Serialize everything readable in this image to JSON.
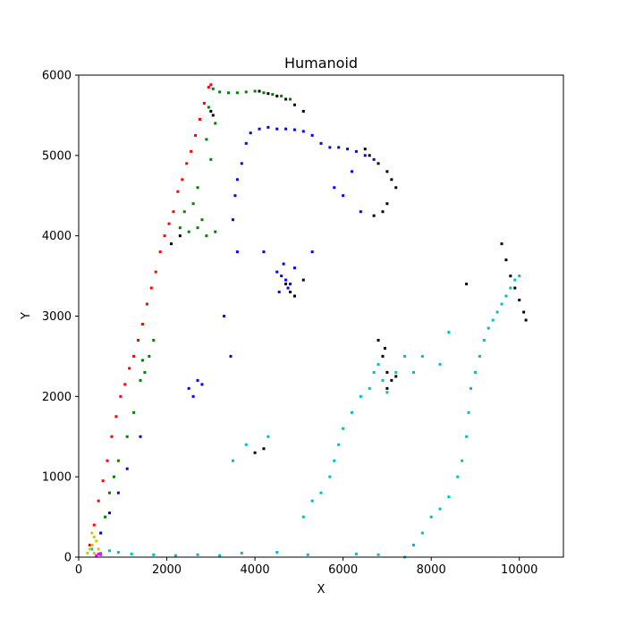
{
  "chart_data": {
    "type": "scatter",
    "title": "Humanoid",
    "xlabel": "X",
    "ylabel": "Y",
    "xlim": [
      0,
      11000
    ],
    "ylim": [
      0,
      6000
    ],
    "x_ticks": [
      0,
      2000,
      4000,
      6000,
      8000,
      10000
    ],
    "y_ticks": [
      0,
      1000,
      2000,
      3000,
      4000,
      5000,
      6000
    ],
    "x_tick_labels": [
      "0",
      "2000",
      "4000",
      "6000",
      "8000",
      "10000"
    ],
    "y_tick_labels": [
      "0",
      "1000",
      "2000",
      "3000",
      "4000",
      "5000",
      "6000"
    ],
    "grid": false,
    "series": [
      {
        "color": "#ff0000",
        "points": [
          [
            250,
            150
          ],
          [
            350,
            400
          ],
          [
            450,
            700
          ],
          [
            550,
            950
          ],
          [
            650,
            1200
          ],
          [
            750,
            1500
          ],
          [
            850,
            1750
          ],
          [
            950,
            2000
          ],
          [
            1050,
            2150
          ],
          [
            1150,
            2350
          ],
          [
            1250,
            2500
          ],
          [
            1350,
            2700
          ],
          [
            1450,
            2900
          ],
          [
            1550,
            3150
          ],
          [
            1650,
            3350
          ],
          [
            1750,
            3550
          ],
          [
            1850,
            3800
          ],
          [
            1950,
            4000
          ],
          [
            2050,
            4150
          ],
          [
            2150,
            4300
          ],
          [
            2250,
            4550
          ],
          [
            2350,
            4700
          ],
          [
            2450,
            4900
          ],
          [
            2550,
            5050
          ],
          [
            2650,
            5250
          ],
          [
            2750,
            5450
          ],
          [
            2850,
            5650
          ],
          [
            2950,
            5850
          ],
          [
            3000,
            5880
          ]
        ]
      },
      {
        "color": "#008000",
        "points": [
          [
            3050,
            5830
          ],
          [
            3200,
            5790
          ],
          [
            3400,
            5780
          ],
          [
            3600,
            5780
          ],
          [
            3800,
            5790
          ],
          [
            4000,
            5800
          ],
          [
            4200,
            5780
          ],
          [
            4400,
            5760
          ],
          [
            4600,
            5740
          ],
          [
            4800,
            5700
          ],
          [
            2950,
            5600
          ],
          [
            3100,
            5400
          ],
          [
            2900,
            5200
          ],
          [
            2300,
            4100
          ],
          [
            2500,
            4050
          ],
          [
            2700,
            4100
          ],
          [
            2900,
            4000
          ],
          [
            3100,
            4050
          ],
          [
            2400,
            4300
          ],
          [
            2800,
            4200
          ],
          [
            1450,
            2450
          ],
          [
            1500,
            2300
          ],
          [
            1400,
            2200
          ],
          [
            1600,
            2500
          ],
          [
            1700,
            2700
          ],
          [
            1250,
            1800
          ],
          [
            1100,
            1500
          ],
          [
            900,
            1200
          ],
          [
            800,
            1000
          ],
          [
            700,
            800
          ],
          [
            600,
            500
          ],
          [
            500,
            300
          ],
          [
            2600,
            4400
          ],
          [
            2700,
            4600
          ],
          [
            3000,
            4950
          ]
        ]
      },
      {
        "color": "#0000ff",
        "points": [
          [
            3900,
            5280
          ],
          [
            4100,
            5330
          ],
          [
            4300,
            5350
          ],
          [
            4500,
            5330
          ],
          [
            4700,
            5330
          ],
          [
            4900,
            5320
          ],
          [
            5100,
            5300
          ],
          [
            5300,
            5250
          ],
          [
            5500,
            5150
          ],
          [
            5700,
            5100
          ],
          [
            5900,
            5100
          ],
          [
            6100,
            5080
          ],
          [
            6300,
            5050
          ],
          [
            6500,
            5000
          ],
          [
            6700,
            4950
          ],
          [
            3800,
            5150
          ],
          [
            3700,
            4900
          ],
          [
            3600,
            4700
          ],
          [
            3550,
            4500
          ],
          [
            3500,
            4200
          ],
          [
            3600,
            3800
          ],
          [
            4600,
            3500
          ],
          [
            4700,
            3450
          ],
          [
            4800,
            3400
          ],
          [
            4500,
            3550
          ],
          [
            4650,
            3650
          ],
          [
            4750,
            3350
          ],
          [
            4550,
            3300
          ],
          [
            4900,
            3600
          ],
          [
            5300,
            3800
          ],
          [
            2500,
            2100
          ],
          [
            2600,
            2000
          ],
          [
            2700,
            2200
          ],
          [
            2800,
            2150
          ],
          [
            1400,
            1500
          ],
          [
            1100,
            1100
          ],
          [
            900,
            800
          ],
          [
            700,
            550
          ],
          [
            500,
            300
          ],
          [
            300,
            150
          ],
          [
            3450,
            2500
          ],
          [
            4200,
            3800
          ],
          [
            5800,
            4600
          ],
          [
            6000,
            4500
          ],
          [
            6400,
            4300
          ],
          [
            6200,
            4800
          ],
          [
            3300,
            3000
          ]
        ]
      },
      {
        "color": "#000000",
        "points": [
          [
            4100,
            5800
          ],
          [
            4300,
            5770
          ],
          [
            4500,
            5740
          ],
          [
            4700,
            5700
          ],
          [
            4900,
            5630
          ],
          [
            5100,
            5550
          ],
          [
            6500,
            5080
          ],
          [
            6600,
            5000
          ],
          [
            6800,
            4900
          ],
          [
            7000,
            4800
          ],
          [
            7100,
            4700
          ],
          [
            7200,
            4600
          ],
          [
            6900,
            4300
          ],
          [
            7000,
            4400
          ],
          [
            6700,
            4250
          ],
          [
            4700,
            3400
          ],
          [
            4800,
            3300
          ],
          [
            4900,
            3250
          ],
          [
            5100,
            3450
          ],
          [
            6800,
            2700
          ],
          [
            6900,
            2500
          ],
          [
            7000,
            2300
          ],
          [
            7100,
            2200
          ],
          [
            7200,
            2250
          ],
          [
            7000,
            2100
          ],
          [
            6950,
            2600
          ],
          [
            9600,
            3900
          ],
          [
            9700,
            3700
          ],
          [
            9800,
            3500
          ],
          [
            9900,
            3350
          ],
          [
            10000,
            3200
          ],
          [
            10100,
            3050
          ],
          [
            10150,
            2950
          ],
          [
            4000,
            1300
          ],
          [
            4200,
            1350
          ],
          [
            2300,
            4000
          ],
          [
            2100,
            3900
          ],
          [
            3000,
            5550
          ],
          [
            3050,
            5500
          ],
          [
            8800,
            3400
          ]
        ]
      },
      {
        "color": "#00bfbf",
        "points": [
          [
            7400,
            0
          ],
          [
            7600,
            150
          ],
          [
            7800,
            300
          ],
          [
            8000,
            500
          ],
          [
            8200,
            600
          ],
          [
            8400,
            750
          ],
          [
            8600,
            1000
          ],
          [
            8700,
            1200
          ],
          [
            8800,
            1500
          ],
          [
            8850,
            1800
          ],
          [
            8900,
            2100
          ],
          [
            9000,
            2300
          ],
          [
            9100,
            2500
          ],
          [
            9200,
            2700
          ],
          [
            9300,
            2850
          ],
          [
            9400,
            2950
          ],
          [
            9500,
            3050
          ],
          [
            9600,
            3150
          ],
          [
            9700,
            3250
          ],
          [
            9800,
            3350
          ],
          [
            9900,
            3450
          ],
          [
            10000,
            3500
          ],
          [
            6700,
            2300
          ],
          [
            6800,
            2400
          ],
          [
            6900,
            2200
          ],
          [
            7000,
            2050
          ],
          [
            7200,
            2300
          ],
          [
            7400,
            2500
          ],
          [
            6600,
            2100
          ],
          [
            6400,
            2000
          ],
          [
            6200,
            1800
          ],
          [
            6000,
            1600
          ],
          [
            5900,
            1400
          ],
          [
            5800,
            1200
          ],
          [
            5700,
            1000
          ],
          [
            5500,
            800
          ],
          [
            5300,
            700
          ],
          [
            5100,
            500
          ],
          [
            3500,
            1200
          ],
          [
            3800,
            1400
          ],
          [
            4300,
            1500
          ],
          [
            300,
            100
          ],
          [
            500,
            50
          ],
          [
            700,
            80
          ],
          [
            900,
            60
          ],
          [
            1200,
            40
          ],
          [
            1700,
            30
          ],
          [
            2200,
            20
          ],
          [
            2700,
            30
          ],
          [
            3200,
            20
          ],
          [
            3700,
            50
          ],
          [
            4500,
            60
          ],
          [
            5200,
            30
          ],
          [
            6300,
            40
          ],
          [
            6800,
            30
          ],
          [
            7600,
            2300
          ],
          [
            8200,
            2400
          ],
          [
            8400,
            2800
          ],
          [
            7800,
            2500
          ]
        ]
      },
      {
        "color": "#cccc00",
        "points": [
          [
            200,
            50
          ],
          [
            250,
            100
          ],
          [
            300,
            150
          ],
          [
            350,
            250
          ],
          [
            400,
            200
          ],
          [
            450,
            100
          ],
          [
            300,
            300
          ],
          [
            350,
            50
          ]
        ]
      },
      {
        "color": "#ff00ff",
        "points": [
          [
            400,
            20
          ],
          [
            450,
            40
          ],
          [
            500,
            30
          ]
        ]
      }
    ]
  }
}
